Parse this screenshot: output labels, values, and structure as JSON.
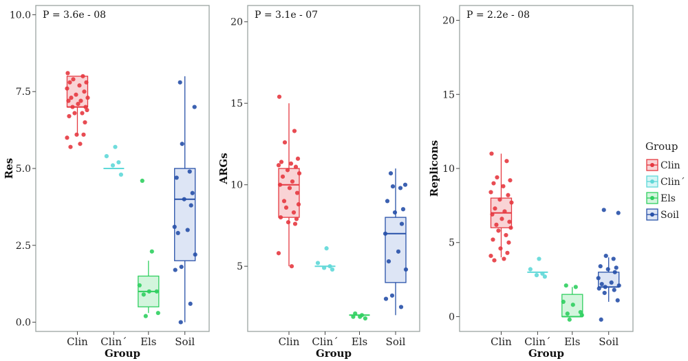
{
  "chart_data": [
    {
      "type": "box",
      "annotation": "P = 3.6e - 08",
      "xlabel": "Group",
      "ylabel": "Res",
      "ylim": [
        -0.3,
        10.3
      ],
      "yticks": [
        0,
        2.5,
        5,
        7.5,
        10
      ],
      "yticklabels": [
        "0.0",
        "2.5",
        "5.0",
        "7.5",
        "10.0"
      ],
      "categories": [
        "Clin",
        "Clin´",
        "Els",
        "Soil"
      ],
      "boxes": [
        {
          "group": "Clin",
          "min": 6.1,
          "q1": 7.0,
          "median": 7.0,
          "q3": 8.0,
          "max": 8.0
        },
        {
          "group": "Clin´",
          "min": 5.0,
          "q1": 5.0,
          "median": 5.0,
          "q3": 5.0,
          "max": 5.0
        },
        {
          "group": "Els",
          "min": 0.3,
          "q1": 0.5,
          "median": 1.0,
          "q3": 1.5,
          "max": 2.0
        },
        {
          "group": "Soil",
          "min": 0.0,
          "q1": 2.0,
          "median": 4.0,
          "q3": 5.0,
          "max": 8.0
        }
      ],
      "points": [
        {
          "group": "Clin",
          "values": [
            8.1,
            8.0,
            7.9,
            7.8,
            7.8,
            7.7,
            7.6,
            7.5,
            7.4,
            7.3,
            7.3,
            7.2,
            7.2,
            7.1,
            7.0,
            7.0,
            6.9,
            6.8,
            6.8,
            6.7,
            6.5,
            6.1,
            6.1,
            6.0,
            5.8,
            5.7
          ]
        },
        {
          "group": "Clin´",
          "values": [
            5.7,
            5.4,
            5.2,
            5.1,
            4.8
          ]
        },
        {
          "group": "Els",
          "values": [
            4.6,
            2.3,
            1.2,
            1.0,
            1.0,
            0.9,
            0.3,
            0.2
          ]
        },
        {
          "group": "Soil",
          "values": [
            7.8,
            7.0,
            5.8,
            4.9,
            4.7,
            4.2,
            4.0,
            3.8,
            3.1,
            3.0,
            2.9,
            2.2,
            1.8,
            1.7,
            0.6,
            0.0
          ]
        }
      ]
    },
    {
      "type": "box",
      "annotation": "P = 3.1e - 07",
      "xlabel": "Group",
      "ylabel": "ARGs",
      "ylim": [
        1,
        21
      ],
      "yticks": [
        5,
        10,
        15,
        20
      ],
      "yticklabels": [
        "5",
        "10",
        "15",
        "20"
      ],
      "categories": [
        "Clin",
        "Clin´",
        "Els",
        "Soil"
      ],
      "boxes": [
        {
          "group": "Clin",
          "min": 5.0,
          "q1": 8.0,
          "median": 10.0,
          "q3": 11.0,
          "max": 15.0
        },
        {
          "group": "Clin´",
          "min": 5.0,
          "q1": 5.0,
          "median": 5.0,
          "q3": 5.0,
          "max": 5.0
        },
        {
          "group": "Els",
          "min": 2.0,
          "q1": 2.0,
          "median": 2.0,
          "q3": 2.0,
          "max": 2.0
        },
        {
          "group": "Soil",
          "min": 2.0,
          "q1": 4.0,
          "median": 7.0,
          "q3": 8.0,
          "max": 11.0
        }
      ],
      "points": [
        {
          "group": "Clin",
          "values": [
            15.4,
            13.3,
            12.6,
            11.6,
            11.4,
            11.3,
            11.2,
            11.1,
            10.9,
            10.7,
            10.5,
            10.2,
            10.0,
            9.8,
            9.5,
            9.0,
            8.8,
            8.6,
            8.3,
            8.0,
            7.9,
            7.7,
            7.6,
            5.8,
            5.0
          ]
        },
        {
          "group": "Clin´",
          "values": [
            6.1,
            5.2,
            5.0,
            4.9,
            4.8
          ]
        },
        {
          "group": "Els",
          "values": [
            2.1,
            2.0,
            1.9,
            1.9,
            1.8
          ]
        },
        {
          "group": "Soil",
          "values": [
            10.7,
            10.0,
            9.9,
            9.8,
            9.0,
            8.5,
            8.3,
            7.6,
            7.0,
            5.9,
            5.3,
            4.8,
            3.2,
            3.0,
            2.5
          ]
        }
      ]
    },
    {
      "type": "box",
      "annotation": "P = 2.2e - 08",
      "xlabel": "Group",
      "ylabel": "Replicons",
      "ylim": [
        -1,
        21
      ],
      "yticks": [
        0,
        5,
        10,
        15,
        20
      ],
      "yticklabels": [
        "0",
        "5",
        "10",
        "15",
        "20"
      ],
      "categories": [
        "Clin",
        "Clin´",
        "Els",
        "Soil"
      ],
      "boxes": [
        {
          "group": "Clin",
          "min": 4.0,
          "q1": 6.0,
          "median": 7.0,
          "q3": 8.0,
          "max": 11.0
        },
        {
          "group": "Clin´",
          "min": 3.0,
          "q1": 3.0,
          "median": 3.0,
          "q3": 3.0,
          "max": 3.0
        },
        {
          "group": "Els",
          "min": 0.0,
          "q1": 0.0,
          "median": 0.0,
          "q3": 1.5,
          "max": 2.0
        },
        {
          "group": "Soil",
          "min": 1.0,
          "q1": 2.0,
          "median": 2.0,
          "q3": 3.0,
          "max": 4.0
        }
      ],
      "points": [
        {
          "group": "Clin",
          "values": [
            11.0,
            10.5,
            9.4,
            9.2,
            9.0,
            8.8,
            8.4,
            8.2,
            7.9,
            7.7,
            7.3,
            7.1,
            6.9,
            6.6,
            6.4,
            6.2,
            6.0,
            5.8,
            5.5,
            5.2,
            5.0,
            4.6,
            4.3,
            4.1,
            3.9,
            3.8
          ]
        },
        {
          "group": "Clin´",
          "values": [
            3.9,
            3.2,
            2.9,
            2.8,
            2.7
          ]
        },
        {
          "group": "Els",
          "values": [
            2.1,
            2.0,
            1.0,
            0.8,
            0.3,
            0.2,
            0.1,
            -0.2
          ]
        },
        {
          "group": "Soil",
          "values": [
            7.2,
            7.0,
            4.1,
            3.9,
            3.4,
            3.3,
            3.2,
            3.0,
            2.6,
            2.3,
            2.2,
            2.1,
            2.0,
            1.9,
            1.8,
            1.6,
            1.1,
            -0.2
          ]
        }
      ]
    }
  ],
  "legend": {
    "title": "Group",
    "position": "right",
    "items": [
      {
        "label": "Clin",
        "color": "#e53840"
      },
      {
        "label": "Clin´",
        "color": "#5fd8d8"
      },
      {
        "label": "Els",
        "color": "#2fcf5f"
      },
      {
        "label": "Soil",
        "color": "#2750a8"
      }
    ]
  },
  "colors": {
    "Clin": {
      "line": "#e53840",
      "fill": "#f9d3d5"
    },
    "Clin´": {
      "line": "#5fd8d8",
      "fill": "#d6f6f6"
    },
    "Els": {
      "line": "#2fcf5f",
      "fill": "#d3f5dd"
    },
    "Soil": {
      "line": "#2750a8",
      "fill": "#dde5f5"
    }
  }
}
